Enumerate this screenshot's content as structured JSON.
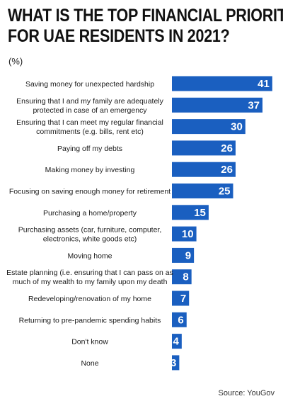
{
  "chart_data": {
    "type": "bar",
    "orientation": "horizontal",
    "title_lines": [
      "WHAT IS THE TOP FINANCIAL PRIORITY",
      "FOR UAE RESIDENTS IN 2021?"
    ],
    "unit": "(%)",
    "source": "Source: YouGov",
    "bar_color": "#1a5fc0",
    "categories": [
      [
        "Saving money for unexpected hardship"
      ],
      [
        "Ensuring that I and my family are adequately",
        "protected in case of an emergency"
      ],
      [
        "Ensuring that I can meet my regular financial",
        "commitments (e.g. bills, rent etc)"
      ],
      [
        "Paying off my debts"
      ],
      [
        "Making money by investing"
      ],
      [
        "Focusing on saving enough money for retirement"
      ],
      [
        "Purchasing a home/property"
      ],
      [
        "Purchasing assets (car, furniture, computer,",
        "electronics, white goods etc)"
      ],
      [
        "Moving home"
      ],
      [
        "Estate planning (i.e. ensuring that I can pass on as",
        "much of my wealth to my family upon my death"
      ],
      [
        "Redeveloping/renovation of my home"
      ],
      [
        "Returning to pre-pandemic spending habits"
      ],
      [
        "Don't know"
      ],
      [
        "None"
      ]
    ],
    "values": [
      41,
      37,
      30,
      26,
      26,
      25,
      15,
      10,
      9,
      8,
      7,
      6,
      4,
      3
    ]
  }
}
